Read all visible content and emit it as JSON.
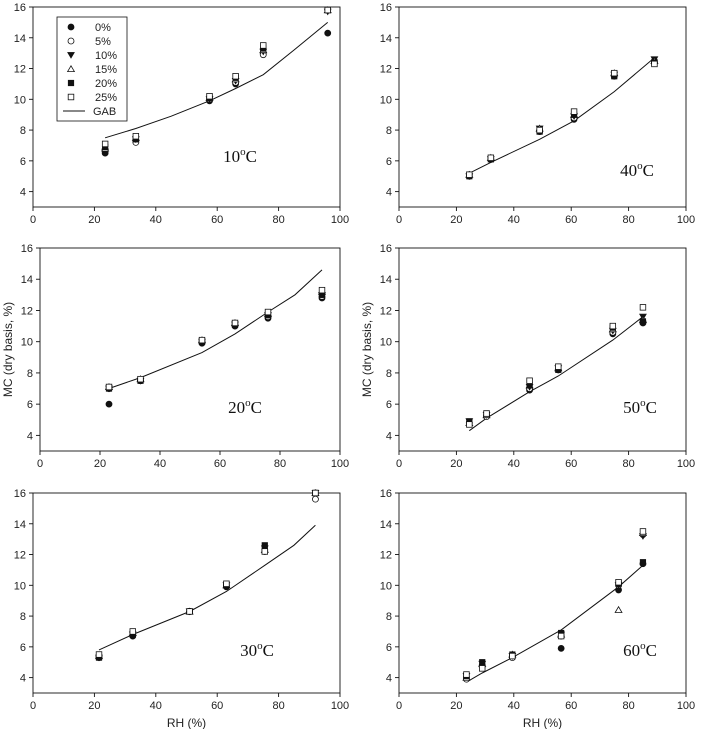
{
  "chart_data": {
    "type": "scatter",
    "legend": {
      "placement": "top-left of first panel",
      "entries": [
        {
          "label": "0%",
          "marker": "filled-circle"
        },
        {
          "label": "5%",
          "marker": "open-circle"
        },
        {
          "label": "10%",
          "marker": "filled-triangle-down"
        },
        {
          "label": "15%",
          "marker": "open-triangle-up"
        },
        {
          "label": "20%",
          "marker": "filled-square"
        },
        {
          "label": "25%",
          "marker": "open-square"
        },
        {
          "label": "GAB",
          "marker": "line"
        }
      ]
    },
    "shared": {
      "xlabel": "RH (%)",
      "ylabel": "MC (dry basis, %)",
      "xlim": [
        0,
        100
      ],
      "ylim": [
        3,
        16
      ],
      "xticks": [
        0,
        20,
        40,
        60,
        80,
        100
      ],
      "yticks": [
        4,
        6,
        8,
        10,
        12,
        14,
        16
      ]
    },
    "panels": [
      {
        "temp_label": {
          "base": "10",
          "sup": "o",
          "suffix": "C"
        },
        "show_ylabel": false,
        "show_xlabel": false,
        "points": [
          {
            "series": "0%",
            "x": [
              23.5,
              33.5,
              57.5,
              66,
              75,
              96
            ],
            "y": [
              6.5,
              7.3,
              9.9,
              11.0,
              13.0,
              14.3
            ]
          },
          {
            "series": "5%",
            "x": [
              23.5,
              33.5,
              57.5,
              66,
              75,
              96
            ],
            "y": [
              6.7,
              7.2,
              10.0,
              11.1,
              12.9,
              15.8
            ]
          },
          {
            "series": "10%",
            "x": [
              23.5,
              33.5,
              57.5,
              66,
              75,
              96
            ],
            "y": [
              6.6,
              7.4,
              10.0,
              11.2,
              13.1,
              15.7
            ]
          },
          {
            "series": "15%",
            "x": [
              23.5,
              33.5,
              57.5,
              66,
              75,
              96
            ],
            "y": [
              6.8,
              7.5,
              10.1,
              11.3,
              13.2,
              15.8
            ]
          },
          {
            "series": "20%",
            "x": [
              23.5,
              33.5,
              57.5,
              66,
              75,
              96
            ],
            "y": [
              6.9,
              7.4,
              10.1,
              11.4,
              13.3,
              15.8
            ]
          },
          {
            "series": "25%",
            "x": [
              23.5,
              33.5,
              57.5,
              66,
              75,
              96
            ],
            "y": [
              7.1,
              7.6,
              10.2,
              11.5,
              13.5,
              15.8
            ]
          }
        ],
        "gab": {
          "x": [
            23.5,
            33.5,
            45,
            57.5,
            66,
            75,
            85,
            96
          ],
          "y": [
            7.5,
            8.1,
            8.9,
            9.9,
            10.7,
            11.6,
            13.2,
            15.0
          ]
        }
      },
      {
        "temp_label": {
          "base": "40",
          "sup": "o",
          "suffix": "C"
        },
        "show_ylabel": false,
        "show_xlabel": false,
        "points": [
          {
            "series": "0%",
            "x": [
              24.5,
              32,
              49,
              61,
              75,
              89
            ],
            "y": [
              5.0,
              6.1,
              7.9,
              8.7,
              11.5,
              12.5
            ]
          },
          {
            "series": "5%",
            "x": [
              24.5,
              32,
              49,
              61,
              75,
              89
            ],
            "y": [
              5.1,
              6.1,
              8.0,
              8.8,
              11.6,
              12.4
            ]
          },
          {
            "series": "10%",
            "x": [
              24.5,
              32,
              49,
              61,
              75,
              89
            ],
            "y": [
              5.0,
              6.1,
              8.1,
              8.9,
              11.6,
              12.6
            ]
          },
          {
            "series": "15%",
            "x": [
              24.5,
              32,
              49,
              61,
              75,
              89
            ],
            "y": [
              5.1,
              6.2,
              8.1,
              9.0,
              11.7,
              12.5
            ]
          },
          {
            "series": "20%",
            "x": [
              24.5,
              32,
              49,
              61,
              75,
              89
            ],
            "y": [
              5.0,
              6.1,
              7.9,
              9.0,
              11.5,
              12.4
            ]
          },
          {
            "series": "25%",
            "x": [
              24.5,
              32,
              49,
              61,
              75,
              89
            ],
            "y": [
              5.1,
              6.2,
              8.0,
              9.2,
              11.7,
              12.3
            ]
          }
        ],
        "gab": {
          "x": [
            24.5,
            32,
            49,
            61,
            75,
            89
          ],
          "y": [
            5.2,
            5.9,
            7.4,
            8.6,
            10.5,
            12.7
          ]
        }
      },
      {
        "temp_label": {
          "base": "20",
          "sup": "o",
          "suffix": "C"
        },
        "show_ylabel": true,
        "show_xlabel": false,
        "points": [
          {
            "series": "0%",
            "x": [
              23,
              33.5,
              54,
              65,
              76,
              94
            ],
            "y": [
              6.0,
              7.5,
              9.9,
              11.0,
              11.5,
              12.8
            ]
          },
          {
            "series": "5%",
            "x": [
              23,
              33.5,
              54,
              65,
              76,
              94
            ],
            "y": [
              7.0,
              7.5,
              10.0,
              11.1,
              11.6,
              12.9
            ]
          },
          {
            "series": "10%",
            "x": [
              23,
              33.5,
              54,
              65,
              76,
              94
            ],
            "y": [
              7.0,
              7.5,
              10.0,
              11.1,
              11.7,
              13.0
            ]
          },
          {
            "series": "15%",
            "x": [
              23,
              33.5,
              54,
              65,
              76,
              94
            ],
            "y": [
              7.1,
              7.6,
              10.1,
              11.2,
              11.8,
              13.2
            ]
          },
          {
            "series": "20%",
            "x": [
              23,
              33.5,
              54,
              65,
              76,
              94
            ],
            "y": [
              7.0,
              7.5,
              10.0,
              11.1,
              11.7,
              13.0
            ]
          },
          {
            "series": "25%",
            "x": [
              23,
              33.5,
              54,
              65,
              76,
              94
            ],
            "y": [
              7.1,
              7.6,
              10.1,
              11.2,
              11.9,
              13.3
            ]
          }
        ],
        "gab": {
          "x": [
            23,
            33.5,
            54,
            65,
            76,
            85,
            94
          ],
          "y": [
            7.0,
            7.7,
            9.3,
            10.5,
            11.9,
            13.0,
            14.6
          ]
        }
      },
      {
        "temp_label": {
          "base": "50",
          "sup": "o",
          "suffix": "C"
        },
        "show_ylabel": true,
        "show_xlabel": false,
        "points": [
          {
            "series": "0%",
            "x": [
              24.5,
              30.5,
              45.5,
              55.5,
              74.5,
              85
            ],
            "y": [
              4.8,
              5.3,
              6.9,
              8.2,
              10.5,
              11.2
            ]
          },
          {
            "series": "5%",
            "x": [
              24.5,
              30.5,
              45.5,
              55.5,
              74.5,
              85
            ],
            "y": [
              4.8,
              5.2,
              7.0,
              8.2,
              10.6,
              11.3
            ]
          },
          {
            "series": "10%",
            "x": [
              24.5,
              30.5,
              45.5,
              55.5,
              74.5,
              85
            ],
            "y": [
              4.9,
              5.3,
              7.1,
              8.3,
              10.7,
              11.6
            ]
          },
          {
            "series": "15%",
            "x": [
              24.5,
              30.5,
              45.5,
              55.5,
              74.5,
              85
            ],
            "y": [
              4.8,
              5.3,
              7.2,
              8.3,
              10.8,
              11.4
            ]
          },
          {
            "series": "20%",
            "x": [
              24.5,
              30.5,
              45.5,
              55.5,
              74.5,
              85
            ],
            "y": [
              4.9,
              5.4,
              7.2,
              8.2,
              10.9,
              11.3
            ]
          },
          {
            "series": "25%",
            "x": [
              24.5,
              30.5,
              45.5,
              55.5,
              74.5,
              85
            ],
            "y": [
              4.7,
              5.4,
              7.5,
              8.4,
              11.0,
              12.2
            ]
          }
        ],
        "gab": {
          "x": [
            24.5,
            30.5,
            45.5,
            55.5,
            74.5,
            85
          ],
          "y": [
            4.3,
            5.1,
            6.8,
            7.8,
            10.1,
            11.6
          ]
        }
      },
      {
        "temp_label": {
          "base": "30",
          "sup": "o",
          "suffix": "C"
        },
        "show_ylabel": false,
        "show_xlabel": true,
        "points": [
          {
            "series": "0%",
            "x": [
              21.5,
              32.5,
              51,
              63,
              75.5,
              92
            ],
            "y": [
              5.3,
              6.7,
              8.3,
              9.9,
              12.2,
              16.0
            ]
          },
          {
            "series": "5%",
            "x": [
              21.5,
              32.5,
              51,
              63,
              75.5,
              92
            ],
            "y": [
              5.4,
              6.8,
              8.3,
              10.0,
              12.3,
              15.6
            ]
          },
          {
            "series": "10%",
            "x": [
              21.5,
              32.5,
              51,
              63,
              75.5,
              92
            ],
            "y": [
              5.3,
              6.8,
              8.3,
              10.0,
              12.4,
              16.0
            ]
          },
          {
            "series": "15%",
            "x": [
              21.5,
              32.5,
              51,
              63,
              75.5,
              92
            ],
            "y": [
              5.4,
              6.9,
              8.3,
              10.0,
              12.3,
              16.0
            ]
          },
          {
            "series": "20%",
            "x": [
              21.5,
              32.5,
              51,
              63,
              75.5,
              92
            ],
            "y": [
              5.3,
              6.8,
              8.3,
              10.0,
              12.6,
              16.0
            ]
          },
          {
            "series": "25%",
            "x": [
              21.5,
              32.5,
              51,
              63,
              75.5,
              92
            ],
            "y": [
              5.5,
              7.0,
              8.3,
              10.1,
              12.2,
              16.0
            ]
          }
        ],
        "gab": {
          "x": [
            21.5,
            32.5,
            51,
            63,
            75.5,
            85,
            92
          ],
          "y": [
            5.8,
            6.8,
            8.3,
            9.6,
            11.3,
            12.6,
            13.9
          ]
        }
      },
      {
        "temp_label": {
          "base": "60",
          "sup": "o",
          "suffix": "C"
        },
        "show_ylabel": false,
        "show_xlabel": true,
        "points": [
          {
            "series": "0%",
            "x": [
              23.5,
              29,
              39.5,
              56.5,
              76.5,
              85
            ],
            "y": [
              4.0,
              4.8,
              5.4,
              5.9,
              9.7,
              11.4
            ]
          },
          {
            "series": "5%",
            "x": [
              23.5,
              29,
              39.5,
              56.5,
              76.5,
              85
            ],
            "y": [
              3.9,
              4.7,
              5.3,
              6.7,
              10.0,
              13.3
            ]
          },
          {
            "series": "10%",
            "x": [
              23.5,
              29,
              39.5,
              56.5,
              76.5,
              85
            ],
            "y": [
              4.1,
              4.9,
              5.4,
              6.8,
              10.0,
              13.2
            ]
          },
          {
            "series": "15%",
            "x": [
              23.5,
              29,
              39.5,
              56.5,
              76.5,
              85
            ],
            "y": [
              4.0,
              4.9,
              5.5,
              6.8,
              8.4,
              13.4
            ]
          },
          {
            "series": "20%",
            "x": [
              23.5,
              29,
              39.5,
              56.5,
              76.5,
              85
            ],
            "y": [
              4.1,
              5.0,
              5.5,
              6.9,
              10.1,
              11.5
            ]
          },
          {
            "series": "25%",
            "x": [
              23.5,
              29,
              39.5,
              56.5,
              76.5,
              85
            ],
            "y": [
              4.2,
              4.6,
              5.4,
              6.7,
              10.2,
              13.5
            ]
          }
        ],
        "gab": {
          "x": [
            23.5,
            29,
            39.5,
            56.5,
            76.5,
            85
          ],
          "y": [
            3.7,
            4.3,
            5.3,
            7.1,
            9.9,
            11.3
          ]
        }
      }
    ]
  }
}
